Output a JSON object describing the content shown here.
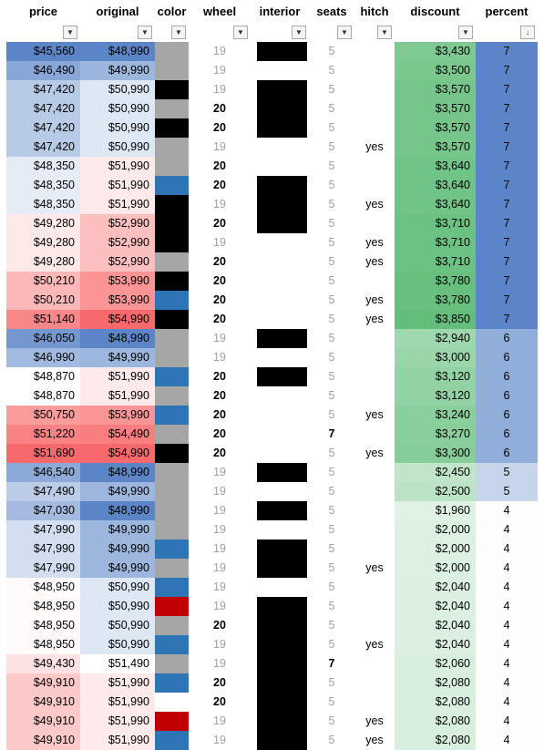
{
  "headers": [
    "price",
    "original",
    "color",
    "wheel",
    "interior",
    "seats",
    "hitch",
    "discount",
    "percent"
  ],
  "filter_icons": [
    "dropdown-arrow-icon",
    "dropdown-arrow-icon",
    "dropdown-arrow-icon",
    "dropdown-arrow-icon",
    "dropdown-arrow-icon",
    "dropdown-arrow-icon",
    "dropdown-arrow-icon",
    "dropdown-arrow-icon",
    "sort-descending-icon"
  ],
  "swatch_colors": {
    "grey": "#a6a6a6",
    "black": "#000000",
    "blue": "#2e75b6",
    "red": "#c00000",
    "white": "#ffffff"
  },
  "rows": [
    {
      "price": "$45,560",
      "original": "$48,990",
      "color": "grey",
      "wheel": "19",
      "interior": "black",
      "seats": "5",
      "hitch": "",
      "discount": "$3,430",
      "percent": "7"
    },
    {
      "price": "$46,490",
      "original": "$49,990",
      "color": "grey",
      "wheel": "19",
      "interior": "white",
      "seats": "5",
      "hitch": "",
      "discount": "$3,500",
      "percent": "7"
    },
    {
      "price": "$47,420",
      "original": "$50,990",
      "color": "black",
      "wheel": "19",
      "interior": "black",
      "seats": "5",
      "hitch": "",
      "discount": "$3,570",
      "percent": "7"
    },
    {
      "price": "$47,420",
      "original": "$50,990",
      "color": "grey",
      "wheel": "20",
      "interior": "black",
      "seats": "5",
      "hitch": "",
      "discount": "$3,570",
      "percent": "7"
    },
    {
      "price": "$47,420",
      "original": "$50,990",
      "color": "black",
      "wheel": "20",
      "interior": "black",
      "seats": "5",
      "hitch": "",
      "discount": "$3,570",
      "percent": "7"
    },
    {
      "price": "$47,420",
      "original": "$50,990",
      "color": "grey",
      "wheel": "19",
      "interior": "white",
      "seats": "5",
      "hitch": "yes",
      "discount": "$3,570",
      "percent": "7"
    },
    {
      "price": "$48,350",
      "original": "$51,990",
      "color": "grey",
      "wheel": "20",
      "interior": "white",
      "seats": "5",
      "hitch": "",
      "discount": "$3,640",
      "percent": "7"
    },
    {
      "price": "$48,350",
      "original": "$51,990",
      "color": "blue",
      "wheel": "20",
      "interior": "black",
      "seats": "5",
      "hitch": "",
      "discount": "$3,640",
      "percent": "7"
    },
    {
      "price": "$48,350",
      "original": "$51,990",
      "color": "black",
      "wheel": "19",
      "interior": "black",
      "seats": "5",
      "hitch": "yes",
      "discount": "$3,640",
      "percent": "7"
    },
    {
      "price": "$49,280",
      "original": "$52,990",
      "color": "black",
      "wheel": "20",
      "interior": "black",
      "seats": "5",
      "hitch": "",
      "discount": "$3,710",
      "percent": "7"
    },
    {
      "price": "$49,280",
      "original": "$52,990",
      "color": "black",
      "wheel": "19",
      "interior": "white",
      "seats": "5",
      "hitch": "yes",
      "discount": "$3,710",
      "percent": "7"
    },
    {
      "price": "$49,280",
      "original": "$52,990",
      "color": "grey",
      "wheel": "20",
      "interior": "white",
      "seats": "5",
      "hitch": "yes",
      "discount": "$3,710",
      "percent": "7"
    },
    {
      "price": "$50,210",
      "original": "$53,990",
      "color": "black",
      "wheel": "20",
      "interior": "white",
      "seats": "5",
      "hitch": "",
      "discount": "$3,780",
      "percent": "7"
    },
    {
      "price": "$50,210",
      "original": "$53,990",
      "color": "blue",
      "wheel": "20",
      "interior": "white",
      "seats": "5",
      "hitch": "yes",
      "discount": "$3,780",
      "percent": "7"
    },
    {
      "price": "$51,140",
      "original": "$54,990",
      "color": "black",
      "wheel": "20",
      "interior": "white",
      "seats": "5",
      "hitch": "yes",
      "discount": "$3,850",
      "percent": "7"
    },
    {
      "price": "$46,050",
      "original": "$48,990",
      "color": "grey",
      "wheel": "19",
      "interior": "black",
      "seats": "5",
      "hitch": "",
      "discount": "$2,940",
      "percent": "6"
    },
    {
      "price": "$46,990",
      "original": "$49,990",
      "color": "grey",
      "wheel": "19",
      "interior": "white",
      "seats": "5",
      "hitch": "",
      "discount": "$3,000",
      "percent": "6"
    },
    {
      "price": "$48,870",
      "original": "$51,990",
      "color": "blue",
      "wheel": "20",
      "interior": "black",
      "seats": "5",
      "hitch": "",
      "discount": "$3,120",
      "percent": "6"
    },
    {
      "price": "$48,870",
      "original": "$51,990",
      "color": "grey",
      "wheel": "20",
      "interior": "white",
      "seats": "5",
      "hitch": "",
      "discount": "$3,120",
      "percent": "6"
    },
    {
      "price": "$50,750",
      "original": "$53,990",
      "color": "blue",
      "wheel": "20",
      "interior": "white",
      "seats": "5",
      "hitch": "yes",
      "discount": "$3,240",
      "percent": "6"
    },
    {
      "price": "$51,220",
      "original": "$54,490",
      "color": "grey",
      "wheel": "20",
      "interior": "white",
      "seats": "7",
      "hitch": "",
      "discount": "$3,270",
      "percent": "6"
    },
    {
      "price": "$51,690",
      "original": "$54,990",
      "color": "black",
      "wheel": "20",
      "interior": "white",
      "seats": "5",
      "hitch": "yes",
      "discount": "$3,300",
      "percent": "6"
    },
    {
      "price": "$46,540",
      "original": "$48,990",
      "color": "grey",
      "wheel": "19",
      "interior": "black",
      "seats": "5",
      "hitch": "",
      "discount": "$2,450",
      "percent": "5"
    },
    {
      "price": "$47,490",
      "original": "$49,990",
      "color": "grey",
      "wheel": "19",
      "interior": "white",
      "seats": "5",
      "hitch": "",
      "discount": "$2,500",
      "percent": "5"
    },
    {
      "price": "$47,030",
      "original": "$48,990",
      "color": "grey",
      "wheel": "19",
      "interior": "black",
      "seats": "5",
      "hitch": "",
      "discount": "$1,960",
      "percent": "4"
    },
    {
      "price": "$47,990",
      "original": "$49,990",
      "color": "grey",
      "wheel": "19",
      "interior": "white",
      "seats": "5",
      "hitch": "",
      "discount": "$2,000",
      "percent": "4"
    },
    {
      "price": "$47,990",
      "original": "$49,990",
      "color": "blue",
      "wheel": "19",
      "interior": "black",
      "seats": "5",
      "hitch": "",
      "discount": "$2,000",
      "percent": "4"
    },
    {
      "price": "$47,990",
      "original": "$49,990",
      "color": "grey",
      "wheel": "19",
      "interior": "black",
      "seats": "5",
      "hitch": "yes",
      "discount": "$2,000",
      "percent": "4"
    },
    {
      "price": "$48,950",
      "original": "$50,990",
      "color": "blue",
      "wheel": "19",
      "interior": "white",
      "seats": "5",
      "hitch": "",
      "discount": "$2,040",
      "percent": "4"
    },
    {
      "price": "$48,950",
      "original": "$50,990",
      "color": "red",
      "wheel": "19",
      "interior": "black",
      "seats": "5",
      "hitch": "",
      "discount": "$2,040",
      "percent": "4"
    },
    {
      "price": "$48,950",
      "original": "$50,990",
      "color": "grey",
      "wheel": "20",
      "interior": "black",
      "seats": "5",
      "hitch": "",
      "discount": "$2,040",
      "percent": "4"
    },
    {
      "price": "$48,950",
      "original": "$50,990",
      "color": "blue",
      "wheel": "19",
      "interior": "black",
      "seats": "5",
      "hitch": "yes",
      "discount": "$2,040",
      "percent": "4"
    },
    {
      "price": "$49,430",
      "original": "$51,490",
      "color": "grey",
      "wheel": "19",
      "interior": "black",
      "seats": "7",
      "hitch": "",
      "discount": "$2,060",
      "percent": "4"
    },
    {
      "price": "$49,910",
      "original": "$51,990",
      "color": "blue",
      "wheel": "20",
      "interior": "black",
      "seats": "5",
      "hitch": "",
      "discount": "$2,080",
      "percent": "4"
    },
    {
      "price": "$49,910",
      "original": "$51,990",
      "color": "white",
      "wheel": "20",
      "interior": "black",
      "seats": "5",
      "hitch": "",
      "discount": "$2,080",
      "percent": "4"
    },
    {
      "price": "$49,910",
      "original": "$51,990",
      "color": "red",
      "wheel": "19",
      "interior": "black",
      "seats": "5",
      "hitch": "yes",
      "discount": "$2,080",
      "percent": "4"
    },
    {
      "price": "$49,910",
      "original": "$51,990",
      "color": "blue",
      "wheel": "19",
      "interior": "black",
      "seats": "5",
      "hitch": "yes",
      "discount": "$2,080",
      "percent": "4"
    }
  ]
}
